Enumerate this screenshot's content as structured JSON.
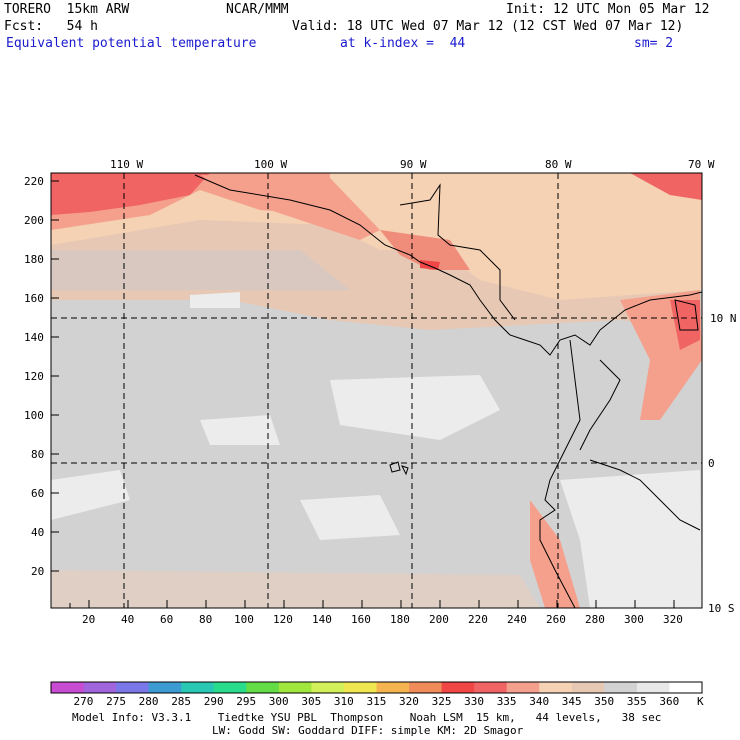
{
  "header": {
    "model": "TORERO  15km ARW",
    "org": "NCAR/MMM",
    "init": "Init: 12 UTC Mon 05 Mar 12",
    "fcst": "Fcst:   54 h",
    "valid": "Valid: 18 UTC Wed 07 Mar 12 (12 CST Wed 07 Mar 12)",
    "field": "Equivalent potential temperature",
    "kindex": "at k-index =  44",
    "smooth": "sm= 2"
  },
  "top_lon_labels": [
    "110 W",
    "100 W",
    "90 W",
    "80 W",
    "70 W"
  ],
  "right_lat_labels": [
    "10 N",
    "0",
    "10 S"
  ],
  "y_ticks": [
    "220",
    "200",
    "180",
    "160",
    "140",
    "120",
    "100",
    "80",
    "60",
    "40",
    "20"
  ],
  "x_ticks": [
    "20",
    "40",
    "60",
    "80",
    "100",
    "120",
    "140",
    "160",
    "180",
    "200",
    "220",
    "240",
    "260",
    "280",
    "300",
    "320"
  ],
  "colorbar": {
    "labels": [
      "270",
      "275",
      "280",
      "285",
      "290",
      "295",
      "300",
      "305",
      "310",
      "315",
      "320",
      "325",
      "330",
      "335",
      "340",
      "345",
      "350",
      "355",
      "360"
    ],
    "unit": "K",
    "colors": [
      "#c84cd2",
      "#a064dc",
      "#7a78e8",
      "#3c9cd2",
      "#28c8b4",
      "#28dc8c",
      "#64dc46",
      "#a0e63c",
      "#d2f05a",
      "#f0e650",
      "#f5b450",
      "#f08c5a",
      "#f04646",
      "#f06464",
      "#f5a08c",
      "#f5d2b4",
      "#e6c8b4",
      "#d2d2d2",
      "#e8e8e8",
      "#ffffff"
    ]
  },
  "footer": {
    "line1": "Model Info: V3.3.1    Tiedtke YSU PBL  Thompson    Noah LSM  15 km,   44 levels,   38 sec",
    "line2": "LW: Godd SW: Goddard DIFF: simple KM: 2D Smagor"
  }
}
